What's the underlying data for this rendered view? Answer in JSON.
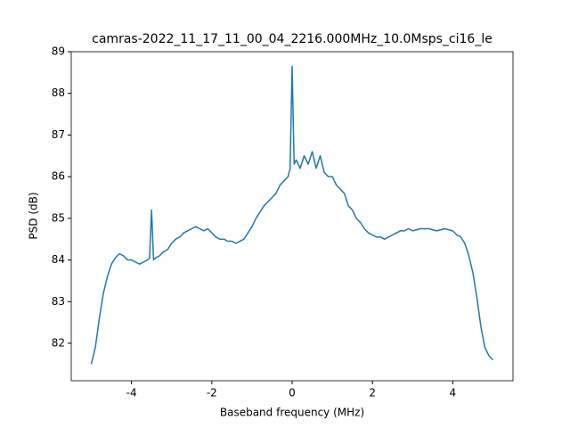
{
  "chart_data": {
    "type": "line",
    "title": "camras-2022_11_17_11_00_04_2216.000MHz_10.0Msps_ci16_le",
    "xlabel": "Baseband frequency (MHz)",
    "ylabel": "PSD (dB)",
    "xlim": [
      -5.5,
      5.5
    ],
    "ylim": [
      81.1,
      89.0
    ],
    "xticks": [
      -4,
      -2,
      0,
      2,
      4
    ],
    "yticks": [
      82,
      83,
      84,
      85,
      86,
      87,
      88,
      89
    ],
    "series": [
      {
        "color": "#1f77b4",
        "x": [
          -5.0,
          -4.9,
          -4.8,
          -4.7,
          -4.6,
          -4.5,
          -4.4,
          -4.3,
          -4.2,
          -4.1,
          -4.0,
          -3.9,
          -3.8,
          -3.7,
          -3.6,
          -3.55,
          -3.5,
          -3.45,
          -3.4,
          -3.3,
          -3.2,
          -3.1,
          -3.0,
          -2.9,
          -2.8,
          -2.7,
          -2.6,
          -2.5,
          -2.4,
          -2.3,
          -2.2,
          -2.1,
          -2.0,
          -1.9,
          -1.8,
          -1.7,
          -1.6,
          -1.5,
          -1.4,
          -1.3,
          -1.2,
          -1.1,
          -1.0,
          -0.9,
          -0.8,
          -0.7,
          -0.6,
          -0.5,
          -0.4,
          -0.3,
          -0.2,
          -0.1,
          -0.05,
          0,
          0.05,
          0.1,
          0.2,
          0.3,
          0.4,
          0.5,
          0.6,
          0.7,
          0.8,
          0.9,
          1.0,
          1.1,
          1.2,
          1.3,
          1.4,
          1.5,
          1.6,
          1.7,
          1.8,
          1.9,
          2.0,
          2.1,
          2.2,
          2.3,
          2.4,
          2.5,
          2.6,
          2.7,
          2.8,
          2.9,
          3.0,
          3.2,
          3.4,
          3.6,
          3.8,
          4.0,
          4.1,
          4.2,
          4.3,
          4.4,
          4.5,
          4.6,
          4.7,
          4.8,
          4.9,
          5.0
        ],
        "values": [
          81.5,
          81.9,
          82.6,
          83.2,
          83.6,
          83.9,
          84.05,
          84.15,
          84.1,
          84.0,
          84.0,
          83.95,
          83.9,
          83.95,
          84.0,
          84.05,
          85.2,
          84.0,
          84.05,
          84.1,
          84.2,
          84.25,
          84.4,
          84.5,
          84.55,
          84.65,
          84.7,
          84.75,
          84.8,
          84.75,
          84.7,
          84.75,
          84.65,
          84.55,
          84.5,
          84.5,
          84.45,
          84.45,
          84.4,
          84.45,
          84.5,
          84.65,
          84.8,
          85.0,
          85.15,
          85.3,
          85.4,
          85.5,
          85.6,
          85.8,
          85.9,
          86.0,
          86.2,
          88.65,
          86.3,
          86.4,
          86.2,
          86.5,
          86.3,
          86.6,
          86.2,
          86.5,
          86.1,
          86.0,
          86.0,
          85.8,
          85.7,
          85.6,
          85.3,
          85.2,
          85.0,
          84.9,
          84.75,
          84.65,
          84.6,
          84.55,
          84.55,
          84.5,
          84.55,
          84.6,
          84.65,
          84.7,
          84.7,
          84.75,
          84.7,
          84.75,
          84.75,
          84.7,
          84.75,
          84.7,
          84.6,
          84.55,
          84.4,
          84.1,
          83.7,
          83.1,
          82.4,
          81.9,
          81.7,
          81.6
        ]
      }
    ]
  }
}
